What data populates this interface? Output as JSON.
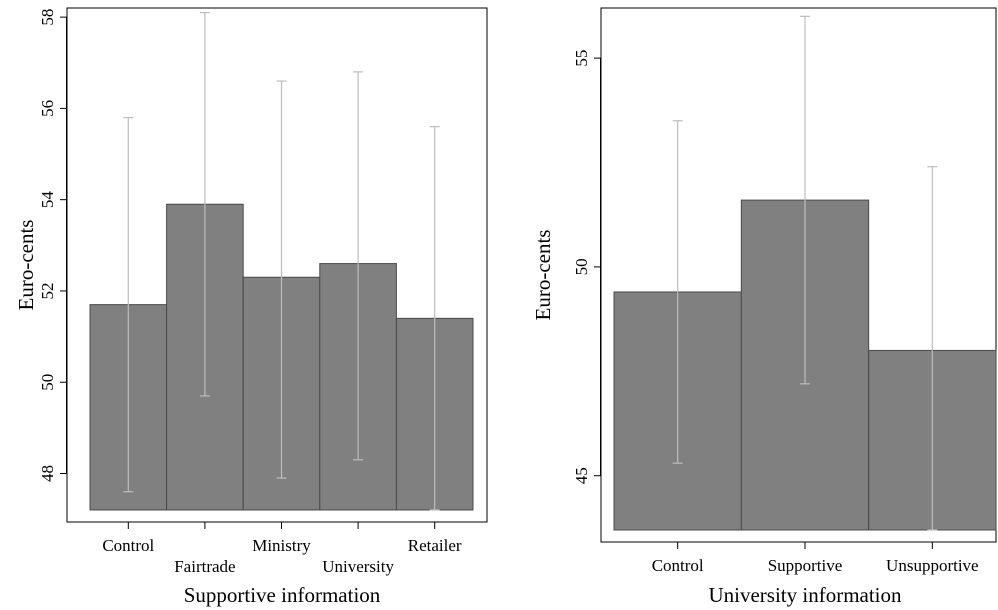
{
  "chart_data": [
    {
      "type": "bar",
      "categories": [
        "Control",
        "Fairtrade",
        "Ministry",
        "University",
        "Retailer"
      ],
      "values": [
        51.7,
        53.9,
        52.3,
        52.6,
        51.4
      ],
      "error_upper": [
        55.8,
        58.1,
        56.6,
        56.8,
        55.6
      ],
      "error_lower": [
        47.6,
        49.7,
        47.9,
        48.3,
        47.2
      ],
      "xlabel": "Supportive information",
      "ylabel": "Euro-cents",
      "yticks": [
        48,
        50,
        52,
        54,
        56,
        58
      ],
      "ylim": [
        47.2,
        58.2
      ],
      "bar_color": "#808080",
      "error_color": "#bdbdbd",
      "grid": false
    },
    {
      "type": "bar",
      "categories": [
        "Control",
        "Supportive",
        "Unsupportive"
      ],
      "values": [
        49.4,
        51.6,
        48.0
      ],
      "error_upper": [
        53.5,
        56.0,
        52.4
      ],
      "error_lower": [
        45.3,
        47.2,
        43.7
      ],
      "xlabel": "University information",
      "ylabel": "Euro-cents",
      "yticks": [
        45,
        50,
        55
      ],
      "ylim": [
        43.7,
        56.2
      ],
      "bar_color": "#808080",
      "error_color": "#bdbdbd",
      "grid": false
    }
  ]
}
